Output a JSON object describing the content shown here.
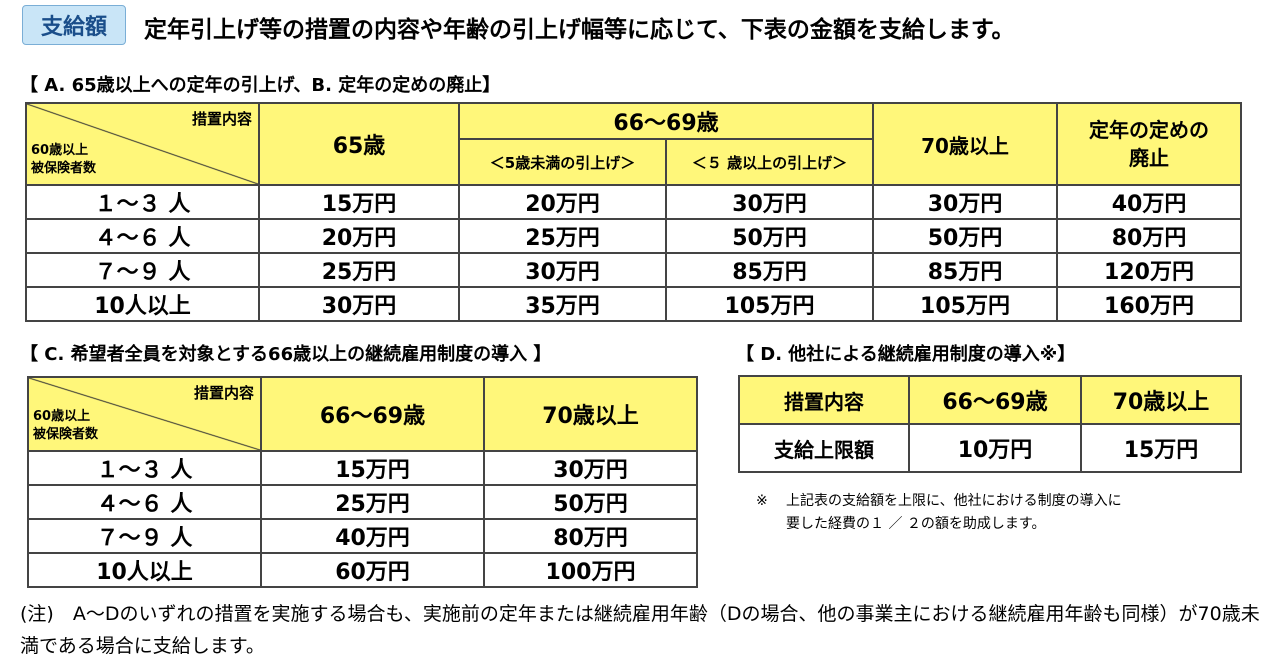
{
  "header": {
    "badge": "支給額",
    "title": "定年引上げ等の措置の内容や年齢の引上げ幅等に応じて、下表の金額を支給します。"
  },
  "section_ab": {
    "title": "【 A. 65歳以上への定年の引上げ、B. 定年の定めの廃止】",
    "corner_top": "措置内容",
    "corner_bottom": [
      "60歳以上",
      "被保険者数"
    ],
    "col_65": "65歳",
    "col_6669": "66～69歳",
    "sub_under5": "＜5歳未満の引上げ＞",
    "sub_over5": "＜５ 歳以上の引上げ＞",
    "col_70": "70歳以上",
    "col_abolish": [
      "定年の定めの",
      "廃止"
    ],
    "rows": [
      [
        "１～３ 人",
        "15万円",
        "20万円",
        "30万円",
        "30万円",
        "40万円"
      ],
      [
        "４～６ 人",
        "20万円",
        "25万円",
        "50万円",
        "50万円",
        "80万円"
      ],
      [
        "７～９ 人",
        "25万円",
        "30万円",
        "85万円",
        "85万円",
        "120万円"
      ],
      [
        "10人以上",
        "30万円",
        "35万円",
        "105万円",
        "105万円",
        "160万円"
      ]
    ]
  },
  "section_c": {
    "title": "【 C. 希望者全員を対象とする66歳以上の継続雇用制度の導入 】",
    "corner_top": "措置内容",
    "corner_bottom": [
      "60歳以上",
      "被保険者数"
    ],
    "col_6669": "66～69歳",
    "col_70": "70歳以上",
    "rows": [
      [
        "１～３ 人",
        "15万円",
        "30万円"
      ],
      [
        "４～６ 人",
        "25万円",
        "50万円"
      ],
      [
        "７～９ 人",
        "40万円",
        "80万円"
      ],
      [
        "10人以上",
        "60万円",
        "100万円"
      ]
    ]
  },
  "section_d": {
    "title": "【 D. 他社による継続雇用制度の導入※】",
    "head": [
      "措置内容",
      "66～69歳",
      "70歳以上"
    ],
    "row": [
      "支給上限額",
      "10万円",
      "15万円"
    ],
    "note_mark": "※",
    "note_lines": [
      "上記表の支給額を上限に、他社における制度の導入に",
      "要した経費の１ ／ ２の額を助成します。"
    ]
  },
  "footnote": "(注)　A～Dのいずれの措置を実施する場合も、実施前の定年または継続雇用年齢（Dの場合、他の事業主における継続雇用年齢も同様）が70歳未満である場合に支給します。"
}
